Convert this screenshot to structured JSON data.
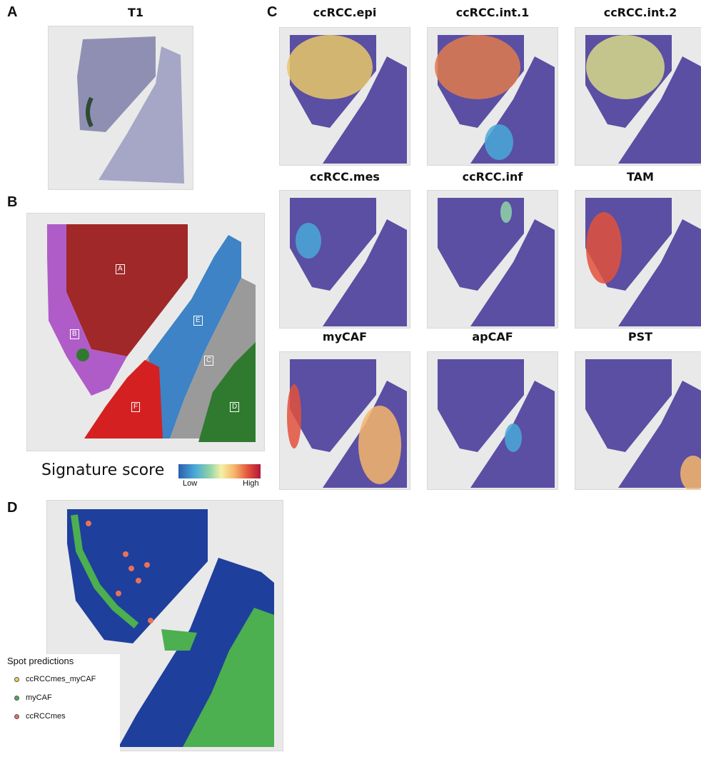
{
  "panel_a": {
    "letter": "A",
    "title": "T1"
  },
  "panel_b": {
    "letter": "B",
    "clusters": [
      {
        "label": "A",
        "color": "#a02828"
      },
      {
        "label": "B",
        "color": "#b05cc8"
      },
      {
        "label": "C",
        "color": "#9a9a9a"
      },
      {
        "label": "D",
        "color": "#2f7a2f"
      },
      {
        "label": "E",
        "color": "#3d83c6"
      },
      {
        "label": "F",
        "color": "#d42020"
      }
    ],
    "colorbar": {
      "title": "Signature score",
      "low": "Low",
      "high": "High"
    }
  },
  "panel_c": {
    "letter": "C",
    "signatures": [
      "ccRCC.epi",
      "ccRCC.int.1",
      "ccRCC.int.2",
      "ccRCC.mes",
      "ccRCC.inf",
      "TAM",
      "myCAF",
      "apCAF",
      "PST"
    ]
  },
  "panel_d": {
    "letter": "D",
    "legend_title": "Spot predictions",
    "legend_items": [
      {
        "label": "ccRCCmes_myCAF",
        "color": "#e8d44d"
      },
      {
        "label": "myCAF",
        "color": "#4caf50"
      },
      {
        "label": "ccRCCmes",
        "color": "#e8715a"
      }
    ],
    "background_color": "#1f3f9c"
  },
  "colors": {
    "tissue_low": "#5a4fa3",
    "slide_bg": "#e9e9e9"
  }
}
